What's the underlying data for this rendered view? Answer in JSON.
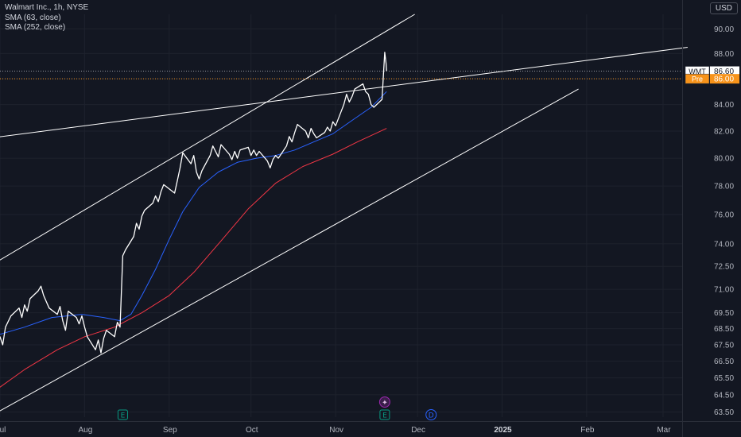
{
  "header": {
    "symbol_line": "Walmart Inc., 1h, NYSE",
    "indicators": [
      "SMA (63, close)",
      "SMA (252, close)"
    ],
    "currency": "USD"
  },
  "price_tags": {
    "last": {
      "label": "WMT",
      "value": "86.60",
      "price": 86.6
    },
    "pre": {
      "label": "Pre",
      "value": "86.00",
      "price": 86.0
    }
  },
  "events": [
    {
      "letter": "E",
      "date": "2024-08-15",
      "color": "#089981"
    },
    {
      "letter": "E",
      "date": "2024-11-19",
      "color": "#089981"
    },
    {
      "letter": "D",
      "date": "2024-12-06",
      "color": "#2962ff"
    },
    {
      "letter": "✦",
      "date": "2024-11-19",
      "color": "#9c27b0"
    }
  ],
  "colors": {
    "background": "#131722",
    "price": "#ffffff",
    "sma63": "#2962ff",
    "sma252": "#f23645",
    "trendline": "#ffffff",
    "pre_tag": "#f7931a"
  },
  "chart_data": {
    "type": "line",
    "title": "Walmart Inc., 1h, NYSE",
    "ylabel": "USD",
    "y_scale": "log",
    "ylim": [
      63.2,
      91.2
    ],
    "xlim": [
      "2024-07-01",
      "2025-03-08"
    ],
    "y_ticks": [
      63.5,
      64.5,
      65.5,
      66.5,
      67.5,
      68.5,
      69.5,
      71.0,
      72.5,
      74.0,
      76.0,
      78.0,
      80.0,
      82.0,
      84.0,
      86.0,
      88.0,
      90.0
    ],
    "x_ticks": [
      {
        "date": "2024-07-01",
        "label": "Jul"
      },
      {
        "date": "2024-08-01",
        "label": "Aug"
      },
      {
        "date": "2024-09-01",
        "label": "Sep"
      },
      {
        "date": "2024-10-01",
        "label": "Oct"
      },
      {
        "date": "2024-11-01",
        "label": "Nov"
      },
      {
        "date": "2024-12-01",
        "label": "Dec"
      },
      {
        "date": "2025-01-01",
        "label": "2025",
        "bold": true
      },
      {
        "date": "2025-02-01",
        "label": "Feb"
      },
      {
        "date": "2025-03-01",
        "label": "Mar"
      }
    ],
    "series": [
      {
        "name": "Walmart Inc., 1h, NYSE",
        "color": "#ffffff",
        "points": [
          [
            "2024-06-28",
            68.2
          ],
          [
            "2024-07-01",
            68.0
          ],
          [
            "2024-07-02",
            67.5
          ],
          [
            "2024-07-03",
            68.6
          ],
          [
            "2024-07-05",
            69.3
          ],
          [
            "2024-07-08",
            69.8
          ],
          [
            "2024-07-09",
            69.2
          ],
          [
            "2024-07-10",
            70.0
          ],
          [
            "2024-07-11",
            69.6
          ],
          [
            "2024-07-12",
            70.4
          ],
          [
            "2024-07-15",
            70.9
          ],
          [
            "2024-07-16",
            71.2
          ],
          [
            "2024-07-17",
            70.6
          ],
          [
            "2024-07-18",
            70.2
          ],
          [
            "2024-07-19",
            69.8
          ],
          [
            "2024-07-22",
            69.4
          ],
          [
            "2024-07-23",
            69.9
          ],
          [
            "2024-07-24",
            69.0
          ],
          [
            "2024-07-25",
            68.4
          ],
          [
            "2024-07-26",
            69.6
          ],
          [
            "2024-07-29",
            69.2
          ],
          [
            "2024-07-30",
            68.8
          ],
          [
            "2024-07-31",
            69.3
          ],
          [
            "2024-08-01",
            68.6
          ],
          [
            "2024-08-02",
            68.0
          ],
          [
            "2024-08-05",
            67.2
          ],
          [
            "2024-08-06",
            67.8
          ],
          [
            "2024-08-07",
            67.0
          ],
          [
            "2024-08-08",
            67.9
          ],
          [
            "2024-08-09",
            68.4
          ],
          [
            "2024-08-12",
            68.0
          ],
          [
            "2024-08-13",
            68.9
          ],
          [
            "2024-08-14",
            68.6
          ],
          [
            "2024-08-15",
            73.2
          ],
          [
            "2024-08-16",
            73.6
          ],
          [
            "2024-08-19",
            74.5
          ],
          [
            "2024-08-20",
            75.4
          ],
          [
            "2024-08-21",
            75.0
          ],
          [
            "2024-08-22",
            75.9
          ],
          [
            "2024-08-23",
            76.3
          ],
          [
            "2024-08-26",
            76.8
          ],
          [
            "2024-08-27",
            77.3
          ],
          [
            "2024-08-28",
            76.9
          ],
          [
            "2024-08-29",
            77.6
          ],
          [
            "2024-08-30",
            78.1
          ],
          [
            "2024-09-03",
            77.5
          ],
          [
            "2024-09-04",
            78.4
          ],
          [
            "2024-09-05",
            79.3
          ],
          [
            "2024-09-06",
            80.4
          ],
          [
            "2024-09-09",
            79.6
          ],
          [
            "2024-09-10",
            80.2
          ],
          [
            "2024-09-11",
            79.0
          ],
          [
            "2024-09-12",
            78.5
          ],
          [
            "2024-09-13",
            79.1
          ],
          [
            "2024-09-16",
            80.2
          ],
          [
            "2024-09-17",
            80.9
          ],
          [
            "2024-09-18",
            80.5
          ],
          [
            "2024-09-19",
            80.1
          ],
          [
            "2024-09-20",
            81.0
          ],
          [
            "2024-09-23",
            80.3
          ],
          [
            "2024-09-24",
            79.9
          ],
          [
            "2024-09-25",
            80.5
          ],
          [
            "2024-09-26",
            80.0
          ],
          [
            "2024-09-27",
            80.6
          ],
          [
            "2024-09-30",
            80.8
          ],
          [
            "2024-10-01",
            80.2
          ],
          [
            "2024-10-02",
            80.6
          ],
          [
            "2024-10-03",
            80.2
          ],
          [
            "2024-10-04",
            80.5
          ],
          [
            "2024-10-07",
            79.8
          ],
          [
            "2024-10-08",
            79.3
          ],
          [
            "2024-10-09",
            79.9
          ],
          [
            "2024-10-10",
            80.2
          ],
          [
            "2024-10-11",
            80.0
          ],
          [
            "2024-10-14",
            80.9
          ],
          [
            "2024-10-15",
            81.6
          ],
          [
            "2024-10-16",
            81.2
          ],
          [
            "2024-10-17",
            81.9
          ],
          [
            "2024-10-18",
            82.5
          ],
          [
            "2024-10-21",
            82.0
          ],
          [
            "2024-10-22",
            81.5
          ],
          [
            "2024-10-23",
            82.2
          ],
          [
            "2024-10-24",
            81.8
          ],
          [
            "2024-10-25",
            81.5
          ],
          [
            "2024-10-28",
            81.9
          ],
          [
            "2024-10-29",
            82.3
          ],
          [
            "2024-10-30",
            82.0
          ],
          [
            "2024-10-31",
            82.7
          ],
          [
            "2024-11-01",
            82.4
          ],
          [
            "2024-11-04",
            84.0
          ],
          [
            "2024-11-05",
            84.8
          ],
          [
            "2024-11-06",
            84.2
          ],
          [
            "2024-11-07",
            84.6
          ],
          [
            "2024-11-08",
            85.2
          ],
          [
            "2024-11-11",
            85.6
          ],
          [
            "2024-11-12",
            85.0
          ],
          [
            "2024-11-13",
            84.8
          ],
          [
            "2024-11-14",
            84.0
          ],
          [
            "2024-11-15",
            83.8
          ],
          [
            "2024-11-18",
            84.4
          ],
          [
            "2024-11-19",
            88.1
          ],
          [
            "2024-11-19T12:00",
            87.2
          ],
          [
            "2024-11-19T16:00",
            86.6
          ]
        ]
      },
      {
        "name": "SMA (63, close)",
        "color": "#2962ff",
        "points": [
          [
            "2024-06-28",
            68.0
          ],
          [
            "2024-07-10",
            68.6
          ],
          [
            "2024-07-20",
            69.2
          ],
          [
            "2024-07-31",
            69.4
          ],
          [
            "2024-08-08",
            69.2
          ],
          [
            "2024-08-14",
            69.0
          ],
          [
            "2024-08-18",
            69.4
          ],
          [
            "2024-08-22",
            70.6
          ],
          [
            "2024-08-27",
            72.3
          ],
          [
            "2024-09-01",
            74.3
          ],
          [
            "2024-09-06",
            76.2
          ],
          [
            "2024-09-12",
            77.9
          ],
          [
            "2024-09-19",
            79.0
          ],
          [
            "2024-09-26",
            79.7
          ],
          [
            "2024-10-03",
            80.0
          ],
          [
            "2024-10-10",
            80.2
          ],
          [
            "2024-10-17",
            80.6
          ],
          [
            "2024-10-24",
            81.2
          ],
          [
            "2024-10-31",
            81.8
          ],
          [
            "2024-11-07",
            82.8
          ],
          [
            "2024-11-14",
            83.8
          ],
          [
            "2024-11-19T16:00",
            85.0
          ]
        ]
      },
      {
        "name": "SMA (252, close)",
        "color": "#f23645",
        "points": [
          [
            "2024-06-28",
            64.6
          ],
          [
            "2024-07-10",
            66.0
          ],
          [
            "2024-07-22",
            67.2
          ],
          [
            "2024-08-01",
            68.0
          ],
          [
            "2024-08-12",
            68.6
          ],
          [
            "2024-08-22",
            69.5
          ],
          [
            "2024-09-01",
            70.6
          ],
          [
            "2024-09-10",
            72.1
          ],
          [
            "2024-09-20",
            74.2
          ],
          [
            "2024-09-30",
            76.4
          ],
          [
            "2024-10-10",
            78.2
          ],
          [
            "2024-10-20",
            79.4
          ],
          [
            "2024-10-31",
            80.3
          ],
          [
            "2024-11-09",
            81.2
          ],
          [
            "2024-11-19T16:00",
            82.2
          ]
        ]
      }
    ],
    "trendlines": [
      {
        "from": [
          "2024-06-28",
          72.6
        ],
        "to": [
          "2024-11-30",
          91.2
        ]
      },
      {
        "from": [
          "2024-06-28",
          81.5
        ],
        "to": [
          "2025-03-10",
          88.5
        ]
      },
      {
        "from": [
          "2024-06-28",
          63.3
        ],
        "to": [
          "2025-01-29",
          85.2
        ]
      }
    ]
  }
}
